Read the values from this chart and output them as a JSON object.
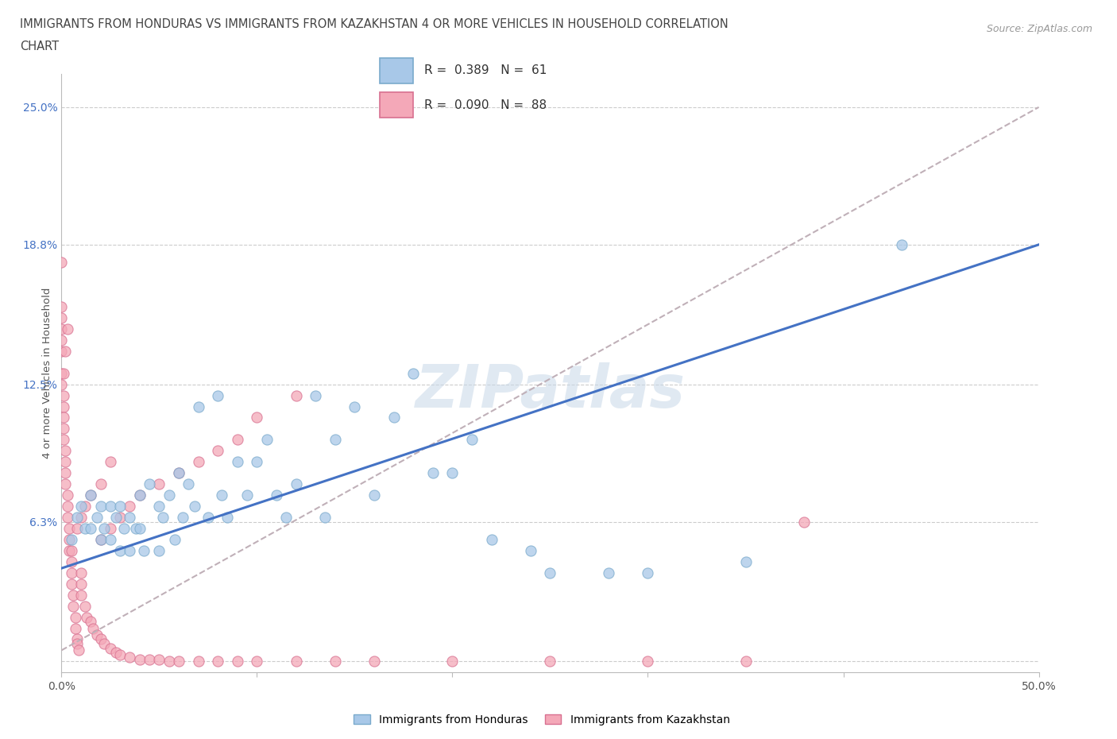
{
  "title_line1": "IMMIGRANTS FROM HONDURAS VS IMMIGRANTS FROM KAZAKHSTAN 4 OR MORE VEHICLES IN HOUSEHOLD CORRELATION",
  "title_line2": "CHART",
  "source_text": "Source: ZipAtlas.com",
  "ylabel": "4 or more Vehicles in Household",
  "xlim": [
    0.0,
    0.5
  ],
  "ylim": [
    -0.005,
    0.265
  ],
  "ytick_vals": [
    0.0,
    0.063,
    0.125,
    0.188,
    0.25
  ],
  "ytick_labels": [
    "",
    "6.3%",
    "12.5%",
    "18.8%",
    "25.0%"
  ],
  "grid_color": "#cccccc",
  "watermark": "ZIPatlas",
  "color_honduras": "#a8c8e8",
  "color_kazakhstan": "#f4a8b8",
  "edge_honduras": "#7aaacc",
  "edge_kazakhstan": "#d87090",
  "regression_line_color": "#4472c4",
  "regression_dashed_color": "#c0a0a8",
  "legend_label1": "Immigrants from Honduras",
  "legend_label2": "Immigrants from Kazakhstan",
  "honduras_x": [
    0.005,
    0.008,
    0.01,
    0.012,
    0.015,
    0.015,
    0.018,
    0.02,
    0.02,
    0.022,
    0.025,
    0.025,
    0.028,
    0.03,
    0.03,
    0.032,
    0.035,
    0.035,
    0.038,
    0.04,
    0.04,
    0.042,
    0.045,
    0.05,
    0.05,
    0.052,
    0.055,
    0.058,
    0.06,
    0.062,
    0.065,
    0.068,
    0.07,
    0.075,
    0.08,
    0.082,
    0.085,
    0.09,
    0.095,
    0.1,
    0.105,
    0.11,
    0.115,
    0.12,
    0.13,
    0.135,
    0.14,
    0.15,
    0.16,
    0.17,
    0.18,
    0.19,
    0.2,
    0.21,
    0.22,
    0.24,
    0.25,
    0.28,
    0.3,
    0.35,
    0.43
  ],
  "honduras_y": [
    0.055,
    0.065,
    0.07,
    0.06,
    0.075,
    0.06,
    0.065,
    0.07,
    0.055,
    0.06,
    0.07,
    0.055,
    0.065,
    0.07,
    0.05,
    0.06,
    0.065,
    0.05,
    0.06,
    0.075,
    0.06,
    0.05,
    0.08,
    0.07,
    0.05,
    0.065,
    0.075,
    0.055,
    0.085,
    0.065,
    0.08,
    0.07,
    0.115,
    0.065,
    0.12,
    0.075,
    0.065,
    0.09,
    0.075,
    0.09,
    0.1,
    0.075,
    0.065,
    0.08,
    0.12,
    0.065,
    0.1,
    0.115,
    0.075,
    0.11,
    0.13,
    0.085,
    0.085,
    0.1,
    0.055,
    0.05,
    0.04,
    0.04,
    0.04,
    0.045,
    0.188
  ],
  "kazakhstan_x": [
    0.0,
    0.0,
    0.0,
    0.0,
    0.0,
    0.0,
    0.0,
    0.0,
    0.001,
    0.001,
    0.001,
    0.001,
    0.001,
    0.002,
    0.002,
    0.002,
    0.002,
    0.003,
    0.003,
    0.003,
    0.004,
    0.004,
    0.004,
    0.005,
    0.005,
    0.005,
    0.006,
    0.006,
    0.007,
    0.007,
    0.008,
    0.008,
    0.009,
    0.01,
    0.01,
    0.01,
    0.012,
    0.013,
    0.015,
    0.016,
    0.018,
    0.02,
    0.022,
    0.025,
    0.028,
    0.03,
    0.035,
    0.04,
    0.045,
    0.05,
    0.055,
    0.06,
    0.07,
    0.08,
    0.09,
    0.1,
    0.12,
    0.14,
    0.16,
    0.2,
    0.25,
    0.3,
    0.35,
    0.02,
    0.025,
    0.03,
    0.035,
    0.04,
    0.05,
    0.06,
    0.07,
    0.08,
    0.09,
    0.1,
    0.12,
    0.005,
    0.008,
    0.01,
    0.012,
    0.015,
    0.02,
    0.025,
    0.001,
    0.002,
    0.003,
    0.38
  ],
  "kazakhstan_y": [
    0.18,
    0.16,
    0.155,
    0.15,
    0.145,
    0.14,
    0.13,
    0.125,
    0.12,
    0.115,
    0.11,
    0.105,
    0.1,
    0.095,
    0.09,
    0.085,
    0.08,
    0.075,
    0.07,
    0.065,
    0.06,
    0.055,
    0.05,
    0.045,
    0.04,
    0.035,
    0.03,
    0.025,
    0.02,
    0.015,
    0.01,
    0.008,
    0.005,
    0.04,
    0.035,
    0.03,
    0.025,
    0.02,
    0.018,
    0.015,
    0.012,
    0.01,
    0.008,
    0.006,
    0.004,
    0.003,
    0.002,
    0.001,
    0.001,
    0.001,
    0.0,
    0.0,
    0.0,
    0.0,
    0.0,
    0.0,
    0.0,
    0.0,
    0.0,
    0.0,
    0.0,
    0.0,
    0.0,
    0.055,
    0.06,
    0.065,
    0.07,
    0.075,
    0.08,
    0.085,
    0.09,
    0.095,
    0.1,
    0.11,
    0.12,
    0.05,
    0.06,
    0.065,
    0.07,
    0.075,
    0.08,
    0.09,
    0.13,
    0.14,
    0.15,
    0.063
  ]
}
